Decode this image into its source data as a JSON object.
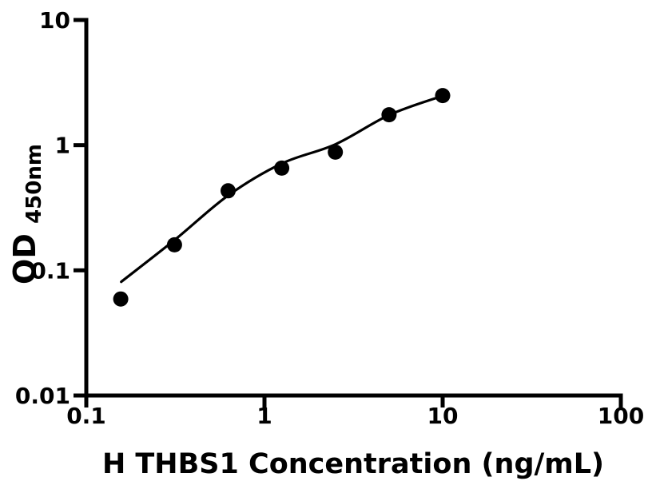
{
  "chart_data": {
    "type": "scatter",
    "title": "",
    "xlabel": "H THBS1 Concentration (ng/mL)",
    "ylabel": "OD",
    "ylabel_sub": "450nm",
    "x_scale": "log",
    "y_scale": "log",
    "xlim": [
      0.1,
      100
    ],
    "ylim": [
      0.01,
      10
    ],
    "grid": false,
    "legend": "none",
    "x_ticks": [
      {
        "v": 0.1,
        "label": "0.1"
      },
      {
        "v": 1,
        "label": "1"
      },
      {
        "v": 10,
        "label": "10"
      },
      {
        "v": 100,
        "label": "100"
      }
    ],
    "y_ticks": [
      {
        "v": 0.01,
        "label": "0.01"
      },
      {
        "v": 0.1,
        "label": "0.1"
      },
      {
        "v": 1,
        "label": "1"
      },
      {
        "v": 10,
        "label": "10"
      }
    ],
    "series": [
      {
        "name": "standard-points",
        "marker": "filled-circle",
        "points": [
          {
            "x": 0.156,
            "y": 0.059
          },
          {
            "x": 0.3125,
            "y": 0.16
          },
          {
            "x": 0.625,
            "y": 0.432
          },
          {
            "x": 1.25,
            "y": 0.656
          },
          {
            "x": 2.5,
            "y": 0.88
          },
          {
            "x": 5,
            "y": 1.75
          },
          {
            "x": 10,
            "y": 2.49
          }
        ]
      }
    ],
    "fit_curve": [
      {
        "x": 0.157,
        "y": 0.081
      },
      {
        "x": 0.315,
        "y": 0.176
      },
      {
        "x": 0.625,
        "y": 0.396
      },
      {
        "x": 1.25,
        "y": 0.713
      },
      {
        "x": 2.5,
        "y": 1.015
      },
      {
        "x": 5.05,
        "y": 1.75
      },
      {
        "x": 10.1,
        "y": 2.49
      }
    ],
    "colors": {
      "marker": "#000000",
      "curve": "#000000",
      "axis": "#000000",
      "text": "#000000",
      "background": "#ffffff"
    }
  }
}
